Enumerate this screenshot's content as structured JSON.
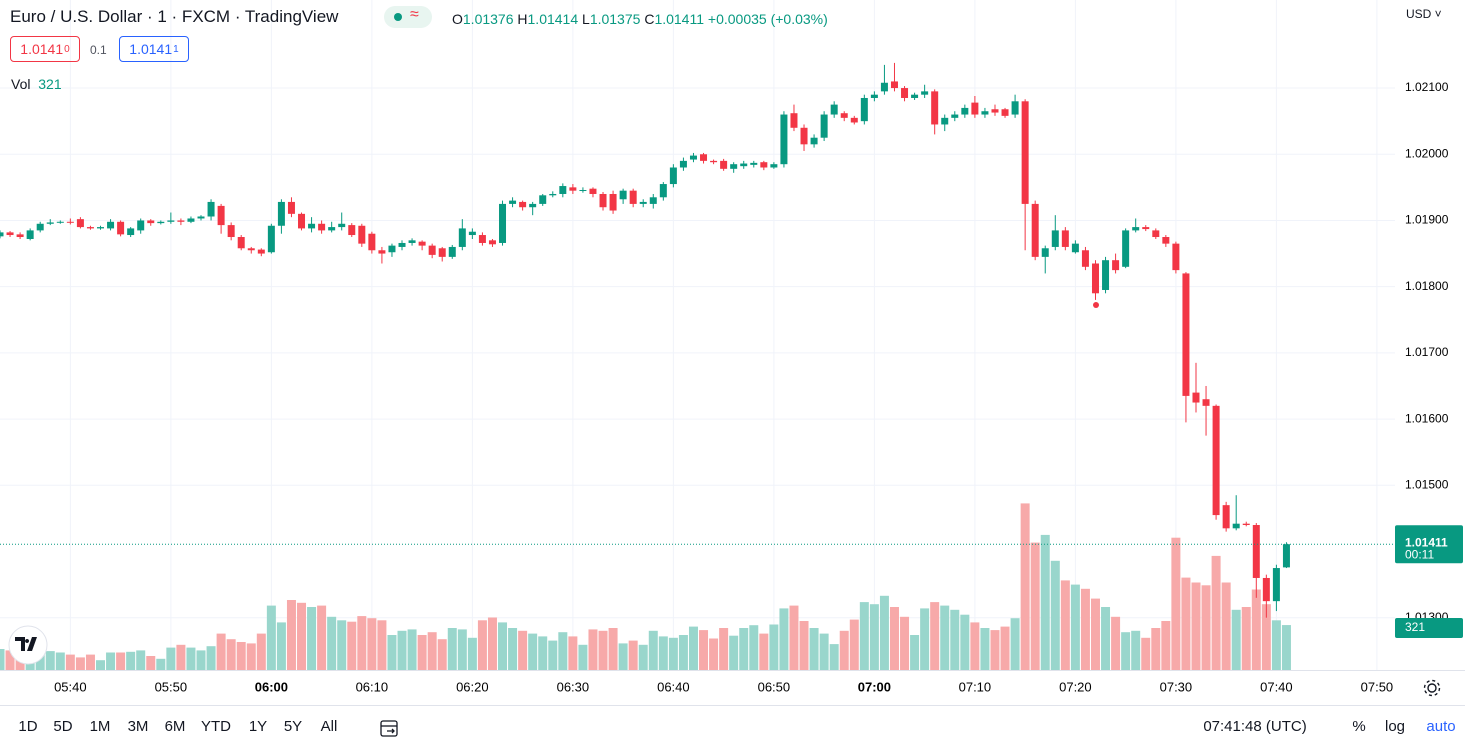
{
  "chart_data": {
    "type": "candlestick",
    "title": "Euro / U.S. Dollar · 1 · FXCM · TradingView",
    "currency": "USD",
    "change": "+0.00035 (+0.03%)",
    "volume_label": "Vol",
    "countdown": "00:11",
    "ohlc_labels": {
      "open": "O",
      "high": "H",
      "low": "L",
      "close": "C"
    },
    "up_color": "#089981",
    "down_color": "#f23645",
    "up_volume_color": "#99d6cc",
    "down_volume_color": "#f7a9a9",
    "grid": true,
    "x": [
      "05:33",
      "05:34",
      "05:35",
      "05:36",
      "05:37",
      "05:38",
      "05:39",
      "05:40",
      "05:41",
      "05:42",
      "05:43",
      "05:44",
      "05:45",
      "05:46",
      "05:47",
      "05:48",
      "05:49",
      "05:50",
      "05:51",
      "05:52",
      "05:53",
      "05:54",
      "05:55",
      "05:56",
      "05:57",
      "05:58",
      "05:59",
      "06:00",
      "06:01",
      "06:02",
      "06:03",
      "06:04",
      "06:05",
      "06:06",
      "06:07",
      "06:08",
      "06:09",
      "06:10",
      "06:11",
      "06:12",
      "06:13",
      "06:14",
      "06:15",
      "06:16",
      "06:17",
      "06:18",
      "06:19",
      "06:20",
      "06:21",
      "06:22",
      "06:23",
      "06:24",
      "06:25",
      "06:26",
      "06:27",
      "06:28",
      "06:29",
      "06:30",
      "06:31",
      "06:32",
      "06:33",
      "06:34",
      "06:35",
      "06:36",
      "06:37",
      "06:38",
      "06:39",
      "06:40",
      "06:41",
      "06:42",
      "06:43",
      "06:44",
      "06:45",
      "06:46",
      "06:47",
      "06:48",
      "06:49",
      "06:50",
      "06:51",
      "06:52",
      "06:53",
      "06:54",
      "06:55",
      "06:56",
      "06:57",
      "06:58",
      "06:59",
      "07:00",
      "07:01",
      "07:02",
      "07:03",
      "07:04",
      "07:05",
      "07:06",
      "07:07",
      "07:08",
      "07:09",
      "07:10",
      "07:11",
      "07:12",
      "07:13",
      "07:14",
      "07:15",
      "07:16",
      "07:17",
      "07:18",
      "07:19",
      "07:20",
      "07:21",
      "07:22",
      "07:23",
      "07:24",
      "07:25",
      "07:26",
      "07:27",
      "07:28",
      "07:29",
      "07:30",
      "07:31",
      "07:32",
      "07:33",
      "07:34",
      "07:35",
      "07:36",
      "07:37",
      "07:38",
      "07:39",
      "07:40",
      "07:41"
    ],
    "open": [
      1.01876,
      1.01882,
      1.01879,
      1.01872,
      1.01885,
      1.01895,
      1.01897,
      1.01898,
      1.01902,
      1.0189,
      1.01888,
      1.01888,
      1.01898,
      1.01878,
      1.01885,
      1.019,
      1.01896,
      1.01898,
      1.019,
      1.01898,
      1.01903,
      1.01906,
      1.01922,
      1.01893,
      1.01875,
      1.01858,
      1.01856,
      1.01852,
      1.01892,
      1.01928,
      1.0191,
      1.01888,
      1.01895,
      1.01885,
      1.0189,
      1.01893,
      1.01892,
      1.0188,
      1.01855,
      1.01852,
      1.0186,
      1.01866,
      1.01868,
      1.01862,
      1.01858,
      1.01845,
      1.0186,
      1.01878,
      1.01878,
      1.0187,
      1.01866,
      1.01925,
      1.01928,
      1.0192,
      1.01925,
      1.01938,
      1.0194,
      1.0195,
      1.01945,
      1.01948,
      1.0194,
      1.0194,
      1.01932,
      1.01945,
      1.01925,
      1.01925,
      1.01935,
      1.01955,
      1.0198,
      1.01992,
      1.02,
      1.0199,
      1.0199,
      1.01978,
      1.01982,
      1.01984,
      1.01988,
      1.0198,
      1.01985,
      1.02062,
      1.0204,
      1.02015,
      1.02025,
      1.0206,
      1.02062,
      1.02055,
      1.0205,
      1.02085,
      1.02095,
      1.0211,
      1.021,
      1.02085,
      1.0209,
      1.02095,
      1.02045,
      1.02055,
      1.0206,
      1.02078,
      1.0206,
      1.02068,
      1.02068,
      1.0206,
      1.0208,
      1.01925,
      1.01845,
      1.0186,
      1.01885,
      1.01852,
      1.01855,
      1.01835,
      1.01795,
      1.0184,
      1.0183,
      1.01885,
      1.0189,
      1.01885,
      1.01875,
      1.01865,
      1.0182,
      1.0164,
      1.0163,
      1.0162,
      1.0147,
      1.01435,
      1.01442,
      1.0144,
      1.0136,
      1.01325,
      1.01376
    ],
    "high": [
      1.01885,
      1.01884,
      1.01882,
      1.01888,
      1.01898,
      1.01902,
      1.019,
      1.01903,
      1.01905,
      1.01892,
      1.01892,
      1.01902,
      1.019,
      1.0189,
      1.01903,
      1.01902,
      1.019,
      1.01912,
      1.01903,
      1.01906,
      1.01908,
      1.01932,
      1.01925,
      1.01897,
      1.01878,
      1.0186,
      1.01858,
      1.01895,
      1.01932,
      1.01935,
      1.01912,
      1.01905,
      1.019,
      1.01898,
      1.01912,
      1.01896,
      1.01895,
      1.01883,
      1.0186,
      1.01865,
      1.0187,
      1.01873,
      1.0187,
      1.01865,
      1.0186,
      1.01863,
      1.01902,
      1.01888,
      1.01882,
      1.01872,
      1.0193,
      1.01935,
      1.0193,
      1.01928,
      1.0194,
      1.01944,
      1.01956,
      1.01955,
      1.0195,
      1.0195,
      1.01943,
      1.01945,
      1.01948,
      1.01948,
      1.01932,
      1.0194,
      1.01958,
      1.01985,
      1.01995,
      1.02002,
      1.02002,
      1.01992,
      1.01993,
      1.01988,
      1.0199,
      1.0199,
      1.0199,
      1.01988,
      1.02065,
      1.02075,
      1.02045,
      1.0203,
      1.02065,
      1.0208,
      1.02065,
      1.02058,
      1.0209,
      1.02095,
      1.02135,
      1.02138,
      1.02103,
      1.02093,
      1.02105,
      1.02098,
      1.0206,
      1.02065,
      1.02075,
      1.02088,
      1.0207,
      1.02075,
      1.0207,
      1.0209,
      1.02083,
      1.0193,
      1.01862,
      1.01908,
      1.0189,
      1.0187,
      1.0186,
      1.0184,
      1.01845,
      1.0185,
      1.01888,
      1.01903,
      1.01893,
      1.01888,
      1.01878,
      1.01868,
      1.01822,
      1.01685,
      1.0165,
      1.01622,
      1.01475,
      1.01485,
      1.01445,
      1.01443,
      1.01365,
      1.0138,
      1.01414
    ],
    "low": [
      1.01873,
      1.01875,
      1.01872,
      1.0187,
      1.01882,
      1.01893,
      1.01895,
      1.01894,
      1.01888,
      1.01886,
      1.01886,
      1.01885,
      1.01876,
      1.01875,
      1.0188,
      1.01892,
      1.01894,
      1.01895,
      1.01893,
      1.01896,
      1.019,
      1.019,
      1.0188,
      1.0187,
      1.01855,
      1.0185,
      1.01846,
      1.0185,
      1.0188,
      1.01905,
      1.01885,
      1.01882,
      1.0188,
      1.01882,
      1.01885,
      1.01875,
      1.0186,
      1.0185,
      1.01835,
      1.01845,
      1.01855,
      1.01862,
      1.01855,
      1.01843,
      1.01838,
      1.01842,
      1.01855,
      1.01872,
      1.01862,
      1.0186,
      1.01862,
      1.0192,
      1.01915,
      1.01908,
      1.01922,
      1.01935,
      1.01935,
      1.0194,
      1.01942,
      1.01935,
      1.01915,
      1.0191,
      1.01925,
      1.0192,
      1.0192,
      1.01918,
      1.0193,
      1.0195,
      1.01975,
      1.01988,
      1.01986,
      1.01985,
      1.01975,
      1.01972,
      1.01978,
      1.0198,
      1.01976,
      1.01978,
      1.0198,
      1.02035,
      1.02005,
      1.0201,
      1.0202,
      1.02055,
      1.0205,
      1.02045,
      1.02045,
      1.0208,
      1.0209,
      1.02095,
      1.0208,
      1.02082,
      1.02085,
      1.0203,
      1.02035,
      1.0205,
      1.02055,
      1.02055,
      1.02055,
      1.02058,
      1.02055,
      1.02055,
      1.01855,
      1.0184,
      1.0182,
      1.01855,
      1.01855,
      1.0185,
      1.01825,
      1.0178,
      1.0179,
      1.0182,
      1.01828,
      1.01882,
      1.01884,
      1.01872,
      1.0186,
      1.0182,
      1.01595,
      1.0161,
      1.01575,
      1.01448,
      1.0143,
      1.01432,
      1.01438,
      1.0133,
      1.013,
      1.0131,
      1.01375
    ],
    "close": [
      1.01882,
      1.01878,
      1.01875,
      1.01885,
      1.01895,
      1.01897,
      1.01898,
      1.01897,
      1.0189,
      1.01888,
      1.0189,
      1.01898,
      1.01879,
      1.01888,
      1.019,
      1.01896,
      1.01898,
      1.019,
      1.01898,
      1.01903,
      1.01906,
      1.01928,
      1.01893,
      1.01875,
      1.01858,
      1.01855,
      1.0185,
      1.01892,
      1.01928,
      1.0191,
      1.01888,
      1.01895,
      1.01885,
      1.0189,
      1.01895,
      1.01878,
      1.01865,
      1.01855,
      1.0185,
      1.01862,
      1.01866,
      1.0187,
      1.01862,
      1.01848,
      1.01845,
      1.0186,
      1.01888,
      1.01883,
      1.01866,
      1.01864,
      1.01925,
      1.0193,
      1.0192,
      1.01925,
      1.01938,
      1.0194,
      1.01952,
      1.01945,
      1.01946,
      1.0194,
      1.0192,
      1.01915,
      1.01945,
      1.01925,
      1.01928,
      1.01935,
      1.01955,
      1.0198,
      1.0199,
      1.01998,
      1.0199,
      1.01988,
      1.01978,
      1.01985,
      1.01986,
      1.01987,
      1.0198,
      1.01985,
      1.0206,
      1.0204,
      1.02015,
      1.02025,
      1.0206,
      1.02075,
      1.02055,
      1.02048,
      1.02085,
      1.0209,
      1.02108,
      1.021,
      1.02085,
      1.0209,
      1.02095,
      1.02045,
      1.02055,
      1.0206,
      1.0207,
      1.0206,
      1.02065,
      1.02063,
      1.02058,
      1.0208,
      1.01925,
      1.01845,
      1.01858,
      1.01885,
      1.0186,
      1.01865,
      1.0183,
      1.0179,
      1.0184,
      1.01825,
      1.01885,
      1.0189,
      1.01887,
      1.01875,
      1.01865,
      1.01825,
      1.01635,
      1.01625,
      1.0162,
      1.01455,
      1.01435,
      1.01442,
      1.0144,
      1.0136,
      1.01325,
      1.01375,
      1.01411
    ],
    "volume": [
      150,
      140,
      120,
      170,
      130,
      135,
      125,
      110,
      90,
      110,
      70,
      125,
      125,
      130,
      140,
      100,
      80,
      160,
      180,
      160,
      140,
      170,
      260,
      220,
      200,
      190,
      260,
      460,
      340,
      500,
      480,
      450,
      460,
      380,
      355,
      345,
      385,
      370,
      355,
      250,
      280,
      290,
      250,
      270,
      220,
      300,
      290,
      230,
      355,
      375,
      340,
      300,
      280,
      260,
      240,
      210,
      270,
      240,
      180,
      290,
      280,
      300,
      190,
      210,
      180,
      280,
      240,
      230,
      250,
      310,
      285,
      225,
      300,
      245,
      300,
      320,
      260,
      325,
      440,
      460,
      350,
      300,
      260,
      185,
      280,
      360,
      485,
      470,
      530,
      450,
      380,
      250,
      440,
      485,
      460,
      430,
      395,
      340,
      300,
      285,
      310,
      370,
      1190,
      910,
      965,
      780,
      640,
      610,
      580,
      510,
      450,
      380,
      270,
      280,
      230,
      300,
      350,
      945,
      660,
      625,
      605,
      815,
      625,
      430,
      450,
      575,
      470,
      355,
      321
    ],
    "ylim": [
      1.01221,
      1.02233
    ],
    "yticks": [
      {
        "value": 1.021,
        "label": "1.02100"
      },
      {
        "value": 1.02,
        "label": "1.02000"
      },
      {
        "value": 1.019,
        "label": "1.01900"
      },
      {
        "value": 1.018,
        "label": "1.01800"
      },
      {
        "value": 1.017,
        "label": "1.01700"
      },
      {
        "value": 1.016,
        "label": "1.01600"
      },
      {
        "value": 1.015,
        "label": "1.01500"
      },
      {
        "value": 1.013,
        "label": "1.01300"
      }
    ],
    "xlim": [
      "05:33",
      "07:52"
    ],
    "xticks": [
      "05:40",
      "05:50",
      "06:00",
      "06:10",
      "06:20",
      "06:30",
      "06:40",
      "06:50",
      "07:00",
      "07:10",
      "07:20",
      "07:30",
      "07:40",
      "07:50"
    ],
    "volume_ylim": [
      0,
      1500
    ]
  },
  "trade": {
    "sell": {
      "price": "1.0141",
      "pip": "0"
    },
    "spread": "0.1",
    "buy": {
      "price": "1.0141",
      "pip": "1"
    }
  },
  "toolbar": {
    "ranges": [
      "1D",
      "5D",
      "1M",
      "3M",
      "6M",
      "YTD",
      "1Y",
      "5Y",
      "All"
    ],
    "clock": "07:41:48 (UTC)",
    "percent": "%",
    "log": "log",
    "auto": "auto"
  }
}
